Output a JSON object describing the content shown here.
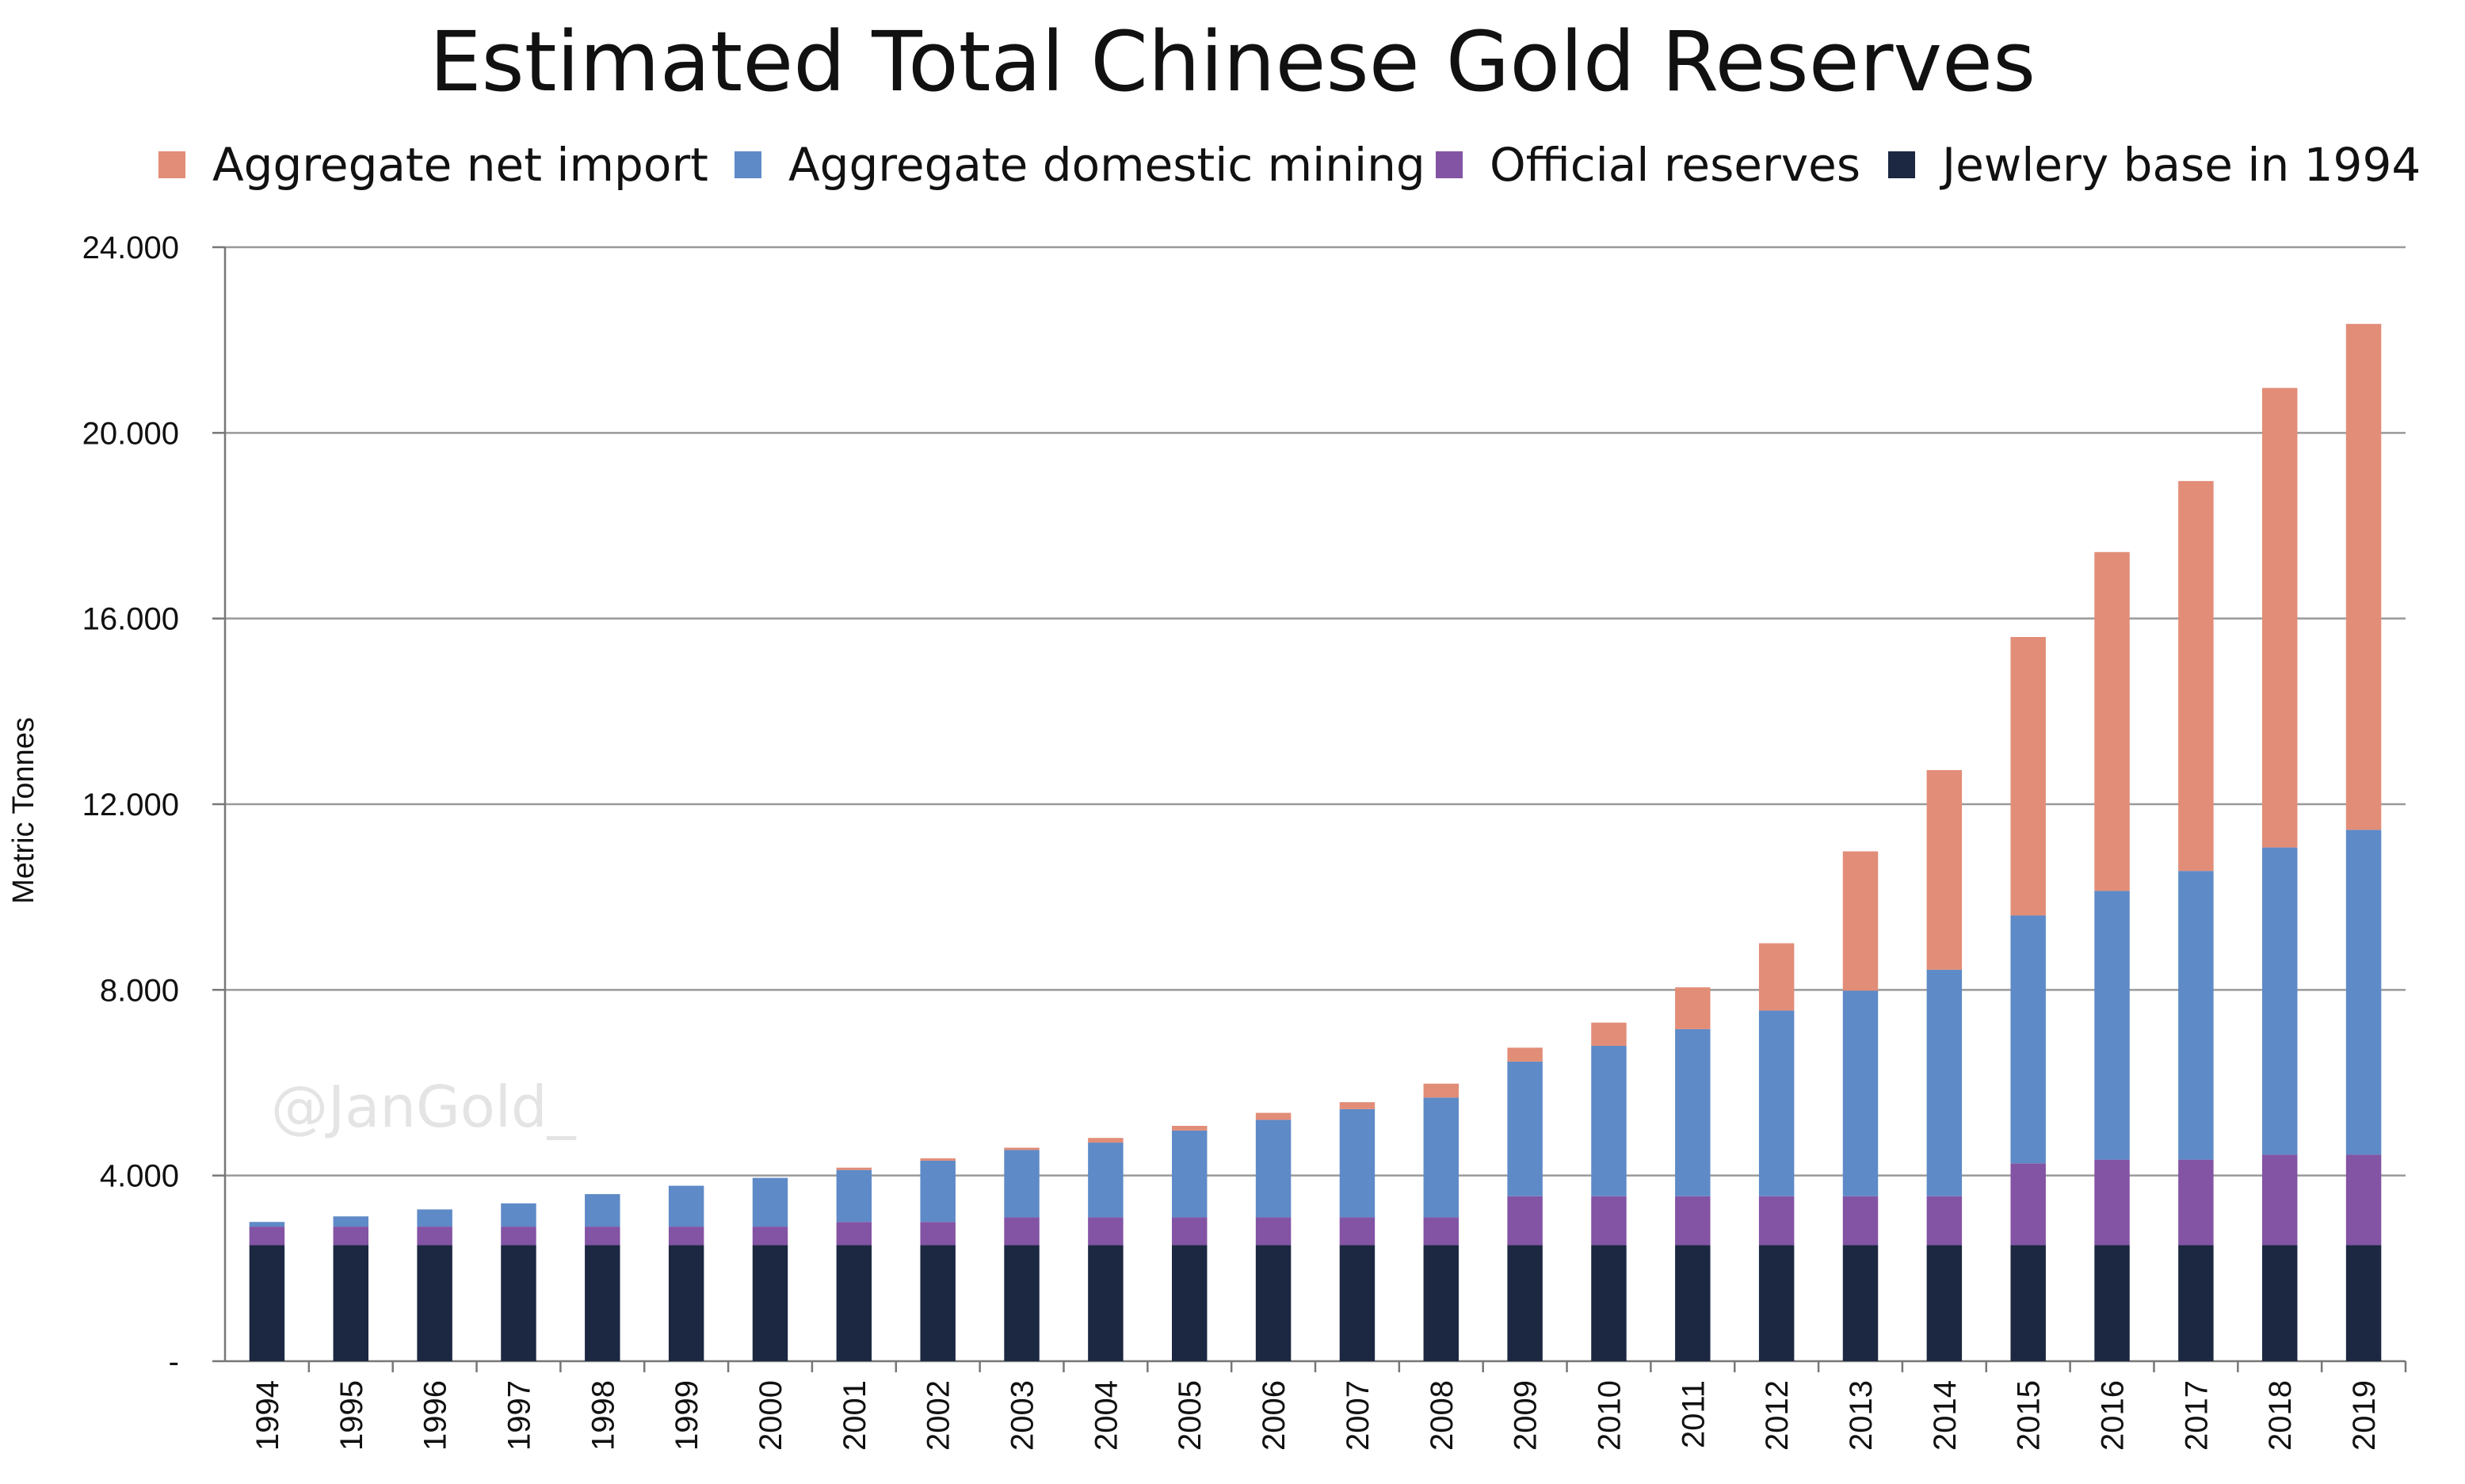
{
  "chart_data": {
    "type": "bar",
    "stacked": true,
    "title": "Estimated Total Chinese Gold Reserves",
    "ylabel": "Metric Tonnes",
    "xlabel": "",
    "ylim": [
      0,
      24000
    ],
    "yticks": [
      "-",
      "4.000",
      "8.000",
      "12.000",
      "16.000",
      "20.000",
      "24.000"
    ],
    "ytick_values": [
      0,
      4000,
      8000,
      12000,
      16000,
      20000,
      24000
    ],
    "grid": true,
    "legend_position": "top",
    "categories": [
      "1994",
      "1995",
      "1996",
      "1997",
      "1998",
      "1999",
      "2000",
      "2001",
      "2002",
      "2003",
      "2004",
      "2005",
      "2006",
      "2007",
      "2008",
      "2009",
      "2010",
      "2011",
      "2012",
      "2013",
      "2014",
      "2015",
      "2016",
      "2017",
      "2018",
      "2019"
    ],
    "series": [
      {
        "name": "Jewlery base in 1994",
        "color": "#1c2841",
        "values": [
          2500,
          2500,
          2500,
          2500,
          2500,
          2500,
          2500,
          2500,
          2500,
          2500,
          2500,
          2500,
          2500,
          2500,
          2500,
          2500,
          2500,
          2500,
          2500,
          2500,
          2500,
          2500,
          2500,
          2500,
          2500,
          2500
        ]
      },
      {
        "name": "Official reserves",
        "color": "#8353a4",
        "values": [
          400,
          400,
          400,
          400,
          400,
          400,
          400,
          500,
          500,
          600,
          600,
          600,
          600,
          600,
          600,
          1054,
          1054,
          1054,
          1054,
          1054,
          1054,
          1762,
          1842,
          1842,
          1948,
          1948
        ]
      },
      {
        "name": "Aggregate domestic mining",
        "color": "#5e8ac7",
        "values": [
          100,
          220,
          370,
          500,
          700,
          880,
          1050,
          1120,
          1320,
          1450,
          1610,
          1870,
          2100,
          2330,
          2580,
          2900,
          3240,
          3600,
          4000,
          4430,
          4880,
          5340,
          5790,
          6220,
          6620,
          7000
        ]
      },
      {
        "name": "Aggregate net import",
        "color": "#e28d78",
        "values": [
          0,
          0,
          0,
          0,
          0,
          0,
          0,
          50,
          50,
          50,
          100,
          100,
          150,
          150,
          300,
          300,
          500,
          900,
          1450,
          3000,
          4300,
          6000,
          7300,
          8400,
          9900,
          10900
        ]
      }
    ]
  },
  "watermark": "@JanGold_"
}
